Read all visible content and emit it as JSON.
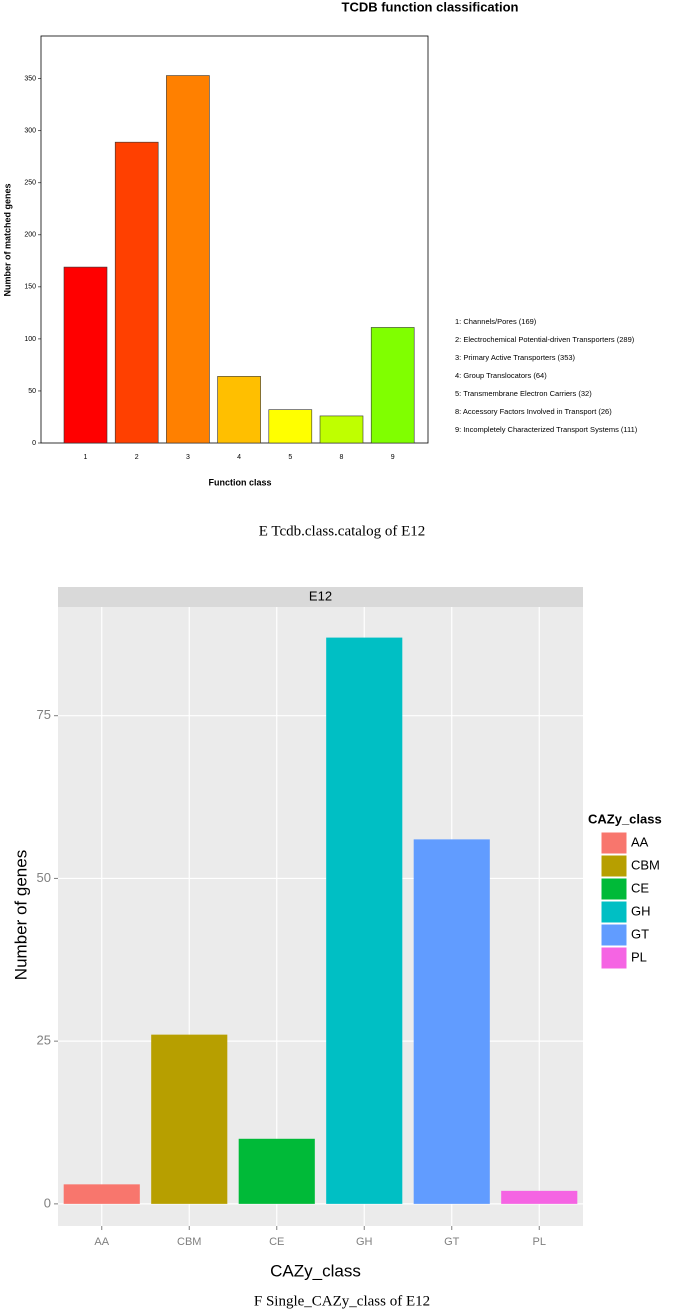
{
  "chart_data": [
    {
      "type": "bar",
      "title": "TCDB function classification",
      "x_label": "Function class",
      "y_label": "Number of matched genes",
      "categories": [
        "1",
        "2",
        "3",
        "4",
        "5",
        "8",
        "9"
      ],
      "values": [
        169,
        289,
        353,
        64,
        32,
        26,
        111
      ],
      "colors": [
        "#ff0000",
        "#ff4000",
        "#ff8000",
        "#ffbf00",
        "#ffff00",
        "#bfff00",
        "#80ff00"
      ],
      "legend": [
        "1: Channels/Pores   (169)",
        "2: Electrochemical Potential-driven Transporters   (289)",
        "3: Primary Active Transporters   (353)",
        "4: Group Translocators   (64)",
        "5: Transmembrane Electron Carriers   (32)",
        "8: Accessory Factors Involved in Transport   (26)",
        "9: Incompletely Characterized Transport Systems   (111)"
      ],
      "ylim": [
        0,
        391
      ],
      "yticks": [
        0,
        50,
        100,
        150,
        200,
        250,
        300,
        350
      ],
      "grid": false,
      "caption": "E    Tcdb.class.catalog of E12"
    },
    {
      "type": "bar",
      "facet": "E12",
      "x_label": "CAZy_class",
      "y_label": "Number of genes",
      "legend_title": "CAZy_class",
      "categories": [
        "AA",
        "CBM",
        "CE",
        "GH",
        "GT",
        "PL"
      ],
      "values": [
        3,
        26,
        10,
        87,
        56,
        2
      ],
      "colors": [
        "#f8766d",
        "#b79f00",
        "#00ba38",
        "#00bfc4",
        "#619cff",
        "#f564e3"
      ],
      "ylim": [
        -3.4,
        91.7
      ],
      "yticks": [
        0,
        25,
        50,
        75
      ],
      "grid": true,
      "caption": "F    Single_CAZy_class of E12"
    }
  ]
}
